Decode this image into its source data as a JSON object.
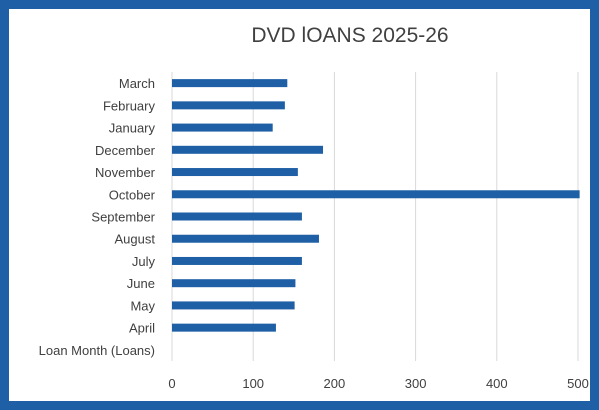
{
  "chart_data": {
    "type": "bar",
    "orientation": "horizontal",
    "title": "DVD lOANS 2025-26",
    "categories": [
      "Loan Month (Loans)",
      "April",
      "May",
      "June",
      "July",
      "August",
      "September",
      "October",
      "November",
      "December",
      "January",
      "February",
      "March"
    ],
    "values": [
      0,
      128,
      151,
      152,
      160,
      181,
      160,
      502,
      155,
      186,
      124,
      139,
      142
    ],
    "x_ticks": [
      0,
      100,
      200,
      300,
      400,
      500
    ],
    "xlim": [
      0,
      500
    ],
    "grid": "vertical",
    "legend": "none",
    "bar_color": "#1f5fa5",
    "grid_color": "#d9d9d9",
    "frame_color": "#1f5fa5",
    "text_color": "#404040"
  }
}
